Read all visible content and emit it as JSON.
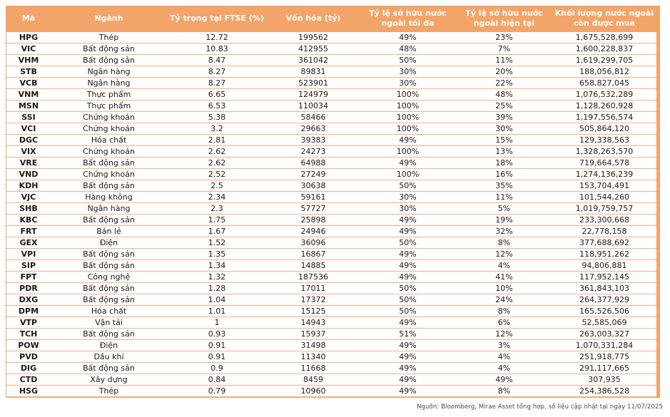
{
  "chart_data": {
    "type": "table",
    "columns": [
      "Mã",
      "Ngành",
      "Tỷ trọng tại FTSE (%)",
      "Vốn hóa (tỷ)",
      "Tỷ lệ sở hữu nước ngoài tối đa",
      "Tỷ lệ sở hữu nước ngoài hiện tại",
      "Khối lượng nước ngoài còn được mua"
    ],
    "rows": [
      [
        "HPG",
        "Thép",
        "12.72",
        "199562",
        "49%",
        "23%",
        "1,675,528,699"
      ],
      [
        "VIC",
        "Bất động sản",
        "10.83",
        "412955",
        "48%",
        "7%",
        "1,600,228,837"
      ],
      [
        "VHM",
        "Bất động sản",
        "8.47",
        "361042",
        "50%",
        "11%",
        "1,619,299,705"
      ],
      [
        "STB",
        "Ngân hàng",
        "8.27",
        "89831",
        "30%",
        "20%",
        "188,056,812"
      ],
      [
        "VCB",
        "Ngân hàng",
        "8.27",
        "523901",
        "30%",
        "22%",
        "658,827,045"
      ],
      [
        "VNM",
        "Thực phẩm",
        "6.65",
        "124979",
        "100%",
        "48%",
        "1,076,532,289"
      ],
      [
        "MSN",
        "Thực phẩm",
        "6.53",
        "110034",
        "100%",
        "25%",
        "1,128,260,928"
      ],
      [
        "SSI",
        "Chứng khoán",
        "5.38",
        "58466",
        "100%",
        "39%",
        "1,197,556,574"
      ],
      [
        "VCI",
        "Chứng khoán",
        "3.2",
        "29663",
        "100%",
        "30%",
        "505,864,120"
      ],
      [
        "DGC",
        "Hóa chất",
        "2.81",
        "39383",
        "49%",
        "15%",
        "129,338,563"
      ],
      [
        "VIX",
        "Chứng khoán",
        "2.62",
        "24273",
        "100%",
        "13%",
        "1,328,263,570"
      ],
      [
        "VRE",
        "Bất động sản",
        "2.62",
        "64988",
        "49%",
        "18%",
        "719,664,578"
      ],
      [
        "VND",
        "Chứng khoán",
        "2.52",
        "27249",
        "100%",
        "16%",
        "1,274,136,239"
      ],
      [
        "KDH",
        "Bất động sản",
        "2.5",
        "30638",
        "50%",
        "35%",
        "153,704,491"
      ],
      [
        "VJC",
        "Hàng không",
        "2.34",
        "59161",
        "30%",
        "11%",
        "101,544,260"
      ],
      [
        "SHB",
        "Ngân hàng",
        "2.3",
        "57727",
        "30%",
        "5%",
        "1,019,759,757"
      ],
      [
        "KBC",
        "Bất động sản",
        "1.75",
        "25898",
        "49%",
        "19%",
        "233,300,668"
      ],
      [
        "FRT",
        "Bán lẻ",
        "1.67",
        "24946",
        "49%",
        "32%",
        "22,778,158"
      ],
      [
        "GEX",
        "Điện",
        "1.52",
        "36096",
        "50%",
        "8%",
        "377,688,692"
      ],
      [
        "VPI",
        "Bất động sản",
        "1.35",
        "16867",
        "49%",
        "12%",
        "118,951,262"
      ],
      [
        "SIP",
        "Bất động sản",
        "1.34",
        "14885",
        "49%",
        "4%",
        "94,806,881"
      ],
      [
        "FPT",
        "Công nghệ",
        "1.32",
        "187536",
        "49%",
        "41%",
        "117,952,145"
      ],
      [
        "PDR",
        "Bất động sản",
        "1.28",
        "17011",
        "50%",
        "10%",
        "361,843,103"
      ],
      [
        "DXG",
        "Bất động sản",
        "1.04",
        "17372",
        "50%",
        "24%",
        "264,377,929"
      ],
      [
        "DPM",
        "Hóa chất",
        "1.01",
        "15125",
        "50%",
        "8%",
        "165,526,506"
      ],
      [
        "VTP",
        "Vận tải",
        "1",
        "14943",
        "49%",
        "6%",
        "52,585,069"
      ],
      [
        "TCH",
        "Bất động sản",
        "0.93",
        "15937",
        "51%",
        "12%",
        "263,003,327"
      ],
      [
        "POW",
        "Điện",
        "0.91",
        "31498",
        "49%",
        "3%",
        "1,070,331,284"
      ],
      [
        "PVD",
        "Dầu khí",
        "0.91",
        "11340",
        "49%",
        "4%",
        "251,918,775"
      ],
      [
        "DIG",
        "Bất động sản",
        "0.9",
        "11668",
        "49%",
        "4%",
        "291,117,665"
      ],
      [
        "CTD",
        "Xây dựng",
        "0.84",
        "8459",
        "49%",
        "49%",
        "307,935"
      ],
      [
        "HSG",
        "Thép",
        "0.79",
        "10960",
        "49%",
        "8%",
        "254,386,528"
      ]
    ],
    "title": "",
    "legend": null,
    "grid": "horizontal-row-borders"
  },
  "footer": {
    "source": "Nguồn: Bloomberg, Mirae Asset tổng hợp, số liệu cập nhật tại ngày 11/07/2025"
  },
  "colors": {
    "header_bg": "#F3A469",
    "header_text": "#FFFFFF",
    "row_border": "#F6B083",
    "body_text": "#1A1A1A",
    "footer_text": "#3E4A59"
  }
}
